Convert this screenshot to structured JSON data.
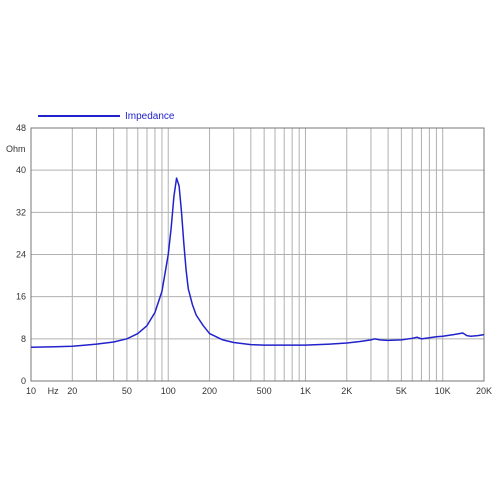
{
  "chart_data": {
    "type": "line",
    "x_scale": "log",
    "grid": true,
    "legend_placement": "top-left",
    "xlim": [
      10,
      20000
    ],
    "ylim": [
      0,
      48
    ],
    "ylabel": "Ohm",
    "xlabel": "",
    "x_tick_labels": [
      {
        "value": 10,
        "label": "10"
      },
      {
        "value": 14.5,
        "label": "Hz"
      },
      {
        "value": 20,
        "label": "20"
      },
      {
        "value": 50,
        "label": "50"
      },
      {
        "value": 100,
        "label": "100"
      },
      {
        "value": 200,
        "label": "200"
      },
      {
        "value": 500,
        "label": "500"
      },
      {
        "value": 1000,
        "label": "1K"
      },
      {
        "value": 2000,
        "label": "2K"
      },
      {
        "value": 5000,
        "label": "5K"
      },
      {
        "value": 10000,
        "label": "10K"
      },
      {
        "value": 20000,
        "label": "20K"
      }
    ],
    "y_ticks": [
      0,
      8,
      16,
      24,
      32,
      40,
      48
    ],
    "series": [
      {
        "name": "Impedance",
        "color": "#2222cc",
        "x": [
          10,
          15,
          20,
          25,
          30,
          40,
          50,
          60,
          70,
          80,
          90,
          100,
          105,
          110,
          115,
          120,
          125,
          130,
          135,
          140,
          150,
          160,
          180,
          200,
          250,
          300,
          400,
          500,
          700,
          1000,
          1500,
          2000,
          2500,
          3000,
          3200,
          3500,
          4000,
          5000,
          6000,
          6500,
          7000,
          8000,
          9000,
          10000,
          12000,
          14000,
          15000,
          16000,
          18000,
          20000
        ],
        "y": [
          6.4,
          6.5,
          6.6,
          6.8,
          7.0,
          7.4,
          8.0,
          9.0,
          10.5,
          13.0,
          17.0,
          24.0,
          29.0,
          35.0,
          38.5,
          37.0,
          32.0,
          26.0,
          21.0,
          17.5,
          14.5,
          12.5,
          10.5,
          9.0,
          7.8,
          7.3,
          6.9,
          6.8,
          6.8,
          6.8,
          7.0,
          7.2,
          7.5,
          7.8,
          8.0,
          7.8,
          7.7,
          7.8,
          8.1,
          8.3,
          8.0,
          8.2,
          8.4,
          8.5,
          8.8,
          9.1,
          8.6,
          8.5,
          8.6,
          8.8
        ]
      }
    ]
  }
}
